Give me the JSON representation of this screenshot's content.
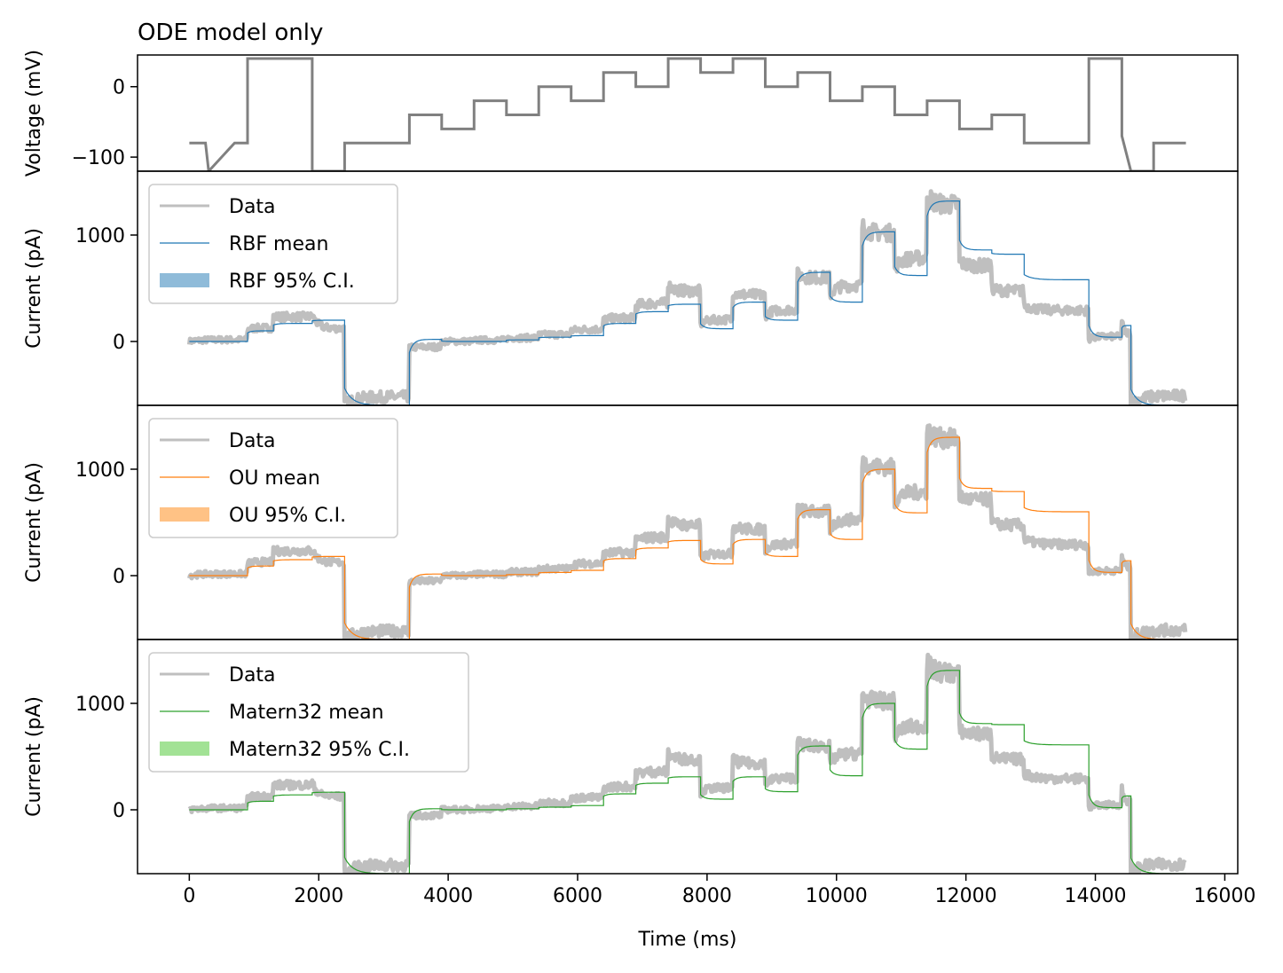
{
  "chart_data": {
    "type": "line",
    "title": "ODE model only",
    "xlabel": "Time (ms)",
    "xlim": [
      -800,
      16200
    ],
    "xticks": [
      0,
      2000,
      4000,
      6000,
      8000,
      10000,
      12000,
      14000,
      16000
    ],
    "panels": [
      {
        "ylabel": "Voltage (mV)",
        "ylim": [
          -120,
          45
        ],
        "yticks": [
          0,
          -100
        ],
        "series": [
          {
            "color": "#808080",
            "x": [
              0,
              250,
              300,
              700,
              900,
              900,
              1900,
              1900,
              2400,
              2400,
              3400,
              3400,
              3900,
              3900,
              4400,
              4400,
              4900,
              4900,
              5400,
              5400,
              5900,
              5900,
              6400,
              6400,
              6900,
              6900,
              7400,
              7400,
              7900,
              7900,
              8400,
              8400,
              8900,
              8900,
              9400,
              9400,
              9900,
              9900,
              10400,
              10400,
              10900,
              10900,
              11400,
              11400,
              11900,
              11900,
              12400,
              12400,
              12900,
              12900,
              13900,
              13900,
              14410,
              14410,
              14550,
              14550,
              14900,
              14900,
              15400
            ],
            "values": [
              -80,
              -80,
              -120,
              -80,
              -80,
              40,
              40,
              -120,
              -120,
              -80,
              -80,
              -40,
              -40,
              -60,
              -60,
              -20,
              -20,
              -40,
              -40,
              0,
              0,
              -20,
              -20,
              20,
              20,
              0,
              0,
              40,
              40,
              20,
              20,
              40,
              40,
              0,
              0,
              20,
              20,
              -20,
              -20,
              0,
              0,
              -40,
              -40,
              -20,
              -20,
              -60,
              -60,
              -40,
              -40,
              -80,
              -80,
              40,
              40,
              -70,
              -120,
              -120,
              -120,
              -80,
              -80
            ]
          }
        ]
      },
      {
        "ylabel": "Current (pA)",
        "ylim": [
          -600,
          1600
        ],
        "yticks": [
          0,
          1000
        ],
        "mean_color": "#1f77b4",
        "ci_color": "#1f77b4",
        "legend": [
          "Data",
          "RBF mean",
          "RBF 95% C.I."
        ],
        "level_scale": 1.0,
        "x": [
          0,
          900,
          1300,
          1900,
          2400,
          3400,
          3900,
          4400,
          4900,
          5400,
          5900,
          6400,
          6900,
          7400,
          7900,
          8400,
          8900,
          9400,
          9900,
          10400,
          10900,
          11400,
          11900,
          12400,
          12900,
          13900,
          14410,
          14550,
          15400
        ],
        "model_mean": [
          0,
          100,
          170,
          200,
          -600,
          20,
          0,
          0,
          15,
          40,
          55,
          170,
          280,
          350,
          120,
          370,
          200,
          650,
          370,
          1030,
          620,
          1320,
          860,
          820,
          580,
          40,
          150,
          -600,
          0
        ],
        "data_mean": [
          0,
          110,
          230,
          250,
          -600,
          -60,
          0,
          10,
          30,
          60,
          100,
          200,
          330,
          530,
          160,
          470,
          240,
          630,
          430,
          1080,
          680,
          1380,
          750,
          500,
          340,
          20,
          200,
          -600,
          0
        ]
      },
      {
        "ylabel": "Current (pA)",
        "ylim": [
          -600,
          1600
        ],
        "yticks": [
          0,
          1000
        ],
        "mean_color": "#ff7f0e",
        "ci_color": "#ffbb78",
        "legend": [
          "Data",
          "OU mean",
          "OU 95% C.I."
        ],
        "level_scale": 0.92,
        "x": [
          0,
          900,
          1300,
          1900,
          2400,
          3400,
          3900,
          4400,
          4900,
          5400,
          5900,
          6400,
          6900,
          7400,
          7900,
          8400,
          8900,
          9400,
          9900,
          10400,
          10900,
          11400,
          11900,
          12400,
          12900,
          13900,
          14410,
          14550,
          15400
        ],
        "model_mean": [
          0,
          90,
          150,
          180,
          -600,
          15,
          0,
          0,
          10,
          30,
          50,
          160,
          260,
          330,
          110,
          340,
          180,
          620,
          340,
          1000,
          590,
          1300,
          820,
          790,
          600,
          30,
          140,
          -600,
          0
        ],
        "data_mean": [
          0,
          110,
          230,
          250,
          -600,
          -60,
          0,
          10,
          30,
          60,
          100,
          200,
          330,
          530,
          160,
          470,
          240,
          630,
          430,
          1080,
          680,
          1380,
          750,
          500,
          340,
          20,
          200,
          -600,
          0
        ]
      },
      {
        "ylabel": "Current (pA)",
        "ylim": [
          -600,
          1600
        ],
        "yticks": [
          0,
          1000
        ],
        "mean_color": "#2ca02c",
        "ci_color": "#98df8a",
        "legend": [
          "Data",
          "Matern32 mean",
          "Matern32 95% C.I."
        ],
        "level_scale": 0.9,
        "x": [
          0,
          900,
          1300,
          1900,
          2400,
          3400,
          3900,
          4400,
          4900,
          5400,
          5900,
          6400,
          6900,
          7400,
          7900,
          8400,
          8900,
          9400,
          9900,
          10400,
          10900,
          11400,
          11900,
          12400,
          12900,
          13900,
          14410,
          14550,
          15400
        ],
        "model_mean": [
          0,
          80,
          140,
          165,
          -600,
          10,
          0,
          0,
          10,
          25,
          40,
          150,
          250,
          310,
          100,
          310,
          170,
          600,
          320,
          1000,
          570,
          1310,
          810,
          800,
          610,
          20,
          130,
          -600,
          0
        ],
        "data_mean": [
          0,
          110,
          230,
          250,
          -600,
          -60,
          0,
          10,
          30,
          60,
          100,
          200,
          330,
          530,
          160,
          470,
          240,
          630,
          430,
          1080,
          680,
          1380,
          750,
          500,
          340,
          20,
          200,
          -600,
          0
        ]
      }
    ],
    "data_color": "#bfbfbf",
    "grid": false,
    "legend_position": "upper-left"
  }
}
